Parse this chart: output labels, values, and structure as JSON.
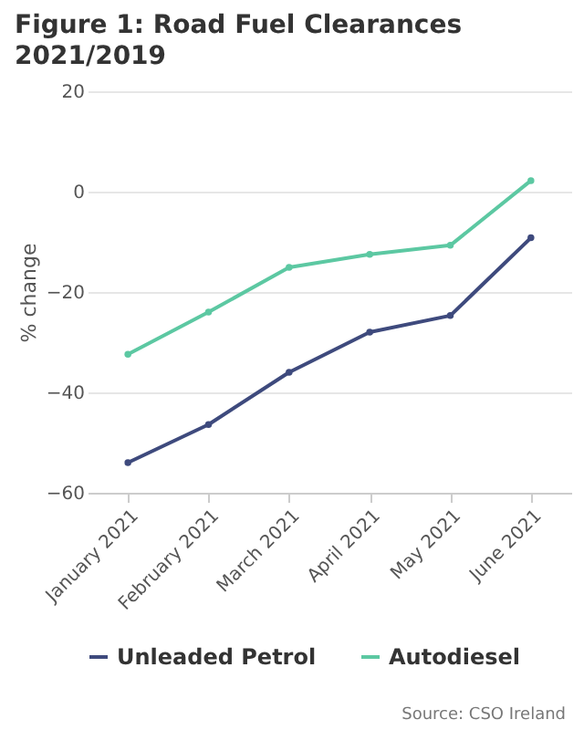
{
  "chart_data": {
    "type": "line",
    "title": "Figure 1: Road Fuel Clearances 2021/2019",
    "ylabel": "% change",
    "categories": [
      "January 2021",
      "February 2021",
      "March 2021",
      "April 2021",
      "May 2021",
      "June 2021"
    ],
    "series": [
      {
        "name": "Unleaded Petrol",
        "color": "#3e4a7d",
        "values": [
          -54,
          -46.4,
          -36,
          -28,
          -24.7,
          -9.2
        ]
      },
      {
        "name": "Autodiesel",
        "color": "#5cc8a2",
        "values": [
          -32.4,
          -24,
          -15.1,
          -12.5,
          -10.7,
          2.2
        ]
      }
    ],
    "ylim": [
      -60,
      20
    ],
    "yticks": [
      -60,
      -40,
      -20,
      0,
      20
    ],
    "grid": "y",
    "legend": "bottom",
    "marker": "circle",
    "line_style": "solid",
    "annotations": [
      "Source: CSO Ireland"
    ]
  }
}
